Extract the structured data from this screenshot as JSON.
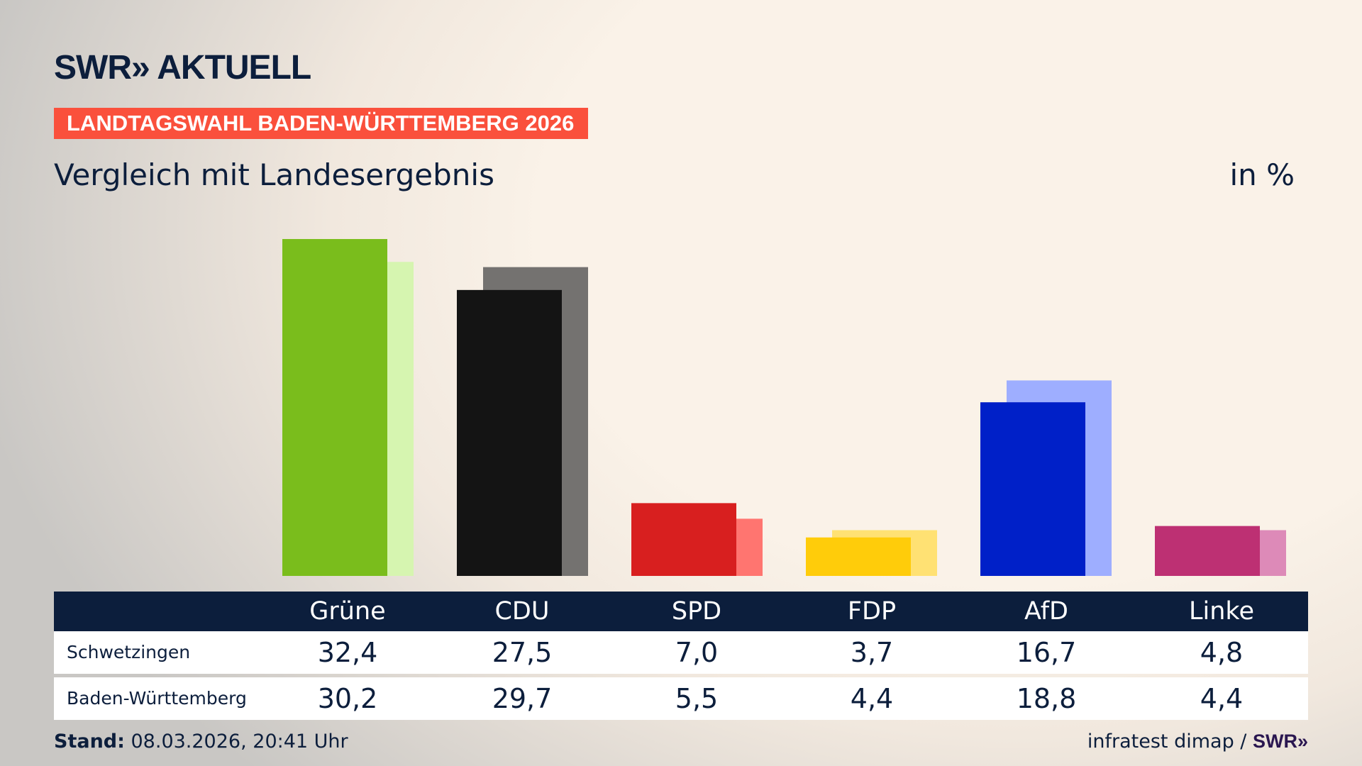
{
  "header": {
    "logo": "SWR» AKTUELL",
    "banner": "LANDTAGSWAHL BADEN-WÜRTTEMBERG 2026",
    "subtitle": "Vergleich mit Landesergebnis",
    "unit": "in %"
  },
  "chart_data": {
    "type": "bar",
    "categories": [
      "Grüne",
      "CDU",
      "SPD",
      "FDP",
      "AfD",
      "Linke"
    ],
    "series": [
      {
        "name": "Schwetzingen",
        "values": [
          32.4,
          27.5,
          7.0,
          3.7,
          16.7,
          4.8
        ],
        "colors": [
          "#7abd1c",
          "#141414",
          "#d81f1f",
          "#ffcc0a",
          "#0020c8",
          "#bd3073"
        ]
      },
      {
        "name": "Baden-Württemberg",
        "values": [
          30.2,
          29.7,
          5.5,
          4.4,
          18.8,
          4.4
        ],
        "colors": [
          "#d6f5b0",
          "#747270",
          "#ff7570",
          "#ffe173",
          "#9eaeff",
          "#dd8ab8"
        ]
      }
    ],
    "ylim": [
      0,
      33
    ]
  },
  "table": {
    "headers": [
      "Grüne",
      "CDU",
      "SPD",
      "FDP",
      "AfD",
      "Linke"
    ],
    "rows": [
      {
        "label": "Schwetzingen",
        "values": [
          "32,4",
          "27,5",
          "7,0",
          "3,7",
          "16,7",
          "4,8"
        ]
      },
      {
        "label": "Baden-Württemberg",
        "values": [
          "30,2",
          "29,7",
          "5,5",
          "4,4",
          "18,8",
          "4,4"
        ]
      }
    ]
  },
  "footer": {
    "stand_label": "Stand:",
    "stand_value": " 08.03.2026, 20:41 Uhr",
    "source": "infratest dimap / ",
    "source_logo": "SWR»"
  },
  "colors": {
    "navy": "#0c1e3c",
    "banner": "#fa503c"
  }
}
